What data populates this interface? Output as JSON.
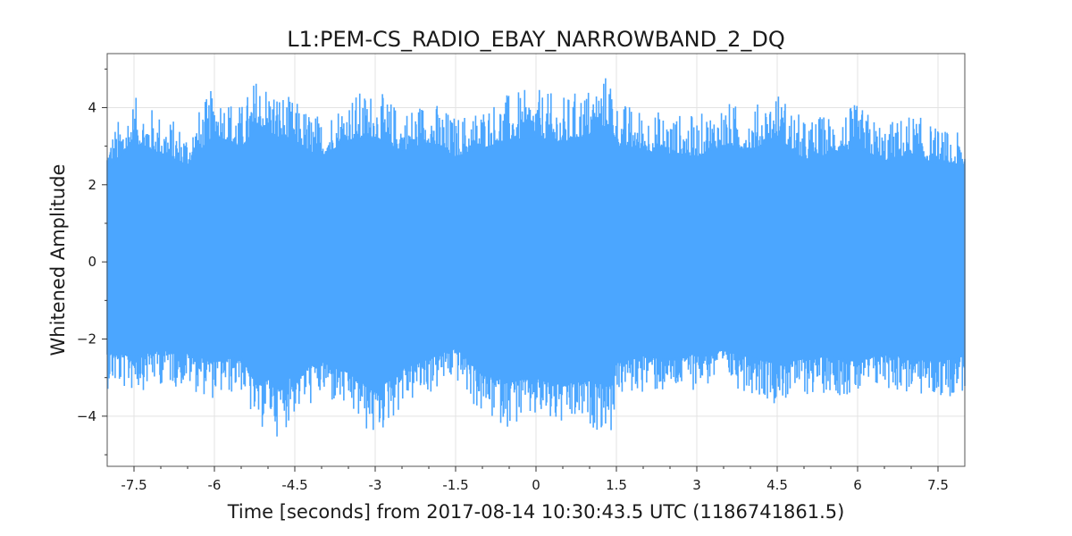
{
  "chart_data": {
    "type": "line",
    "title": "L1:PEM-CS_RADIO_EBAY_NARROWBAND_2_DQ",
    "xlabel": "Time [seconds] from 2017-08-14 10:30:43.5 UTC (1186741861.5)",
    "ylabel": "Whitened Amplitude",
    "xlim": [
      -8,
      8
    ],
    "ylim": [
      -5.3,
      5.4
    ],
    "x_ticks": [
      -7.5,
      -6,
      -4.5,
      -3,
      -1.5,
      0,
      1.5,
      3,
      4.5,
      6,
      7.5
    ],
    "x_tick_labels": [
      "-7.5",
      "-6",
      "-4.5",
      "-3",
      "-1.5",
      "0",
      "1.5",
      "3",
      "4.5",
      "6",
      "7.5"
    ],
    "y_ticks": [
      -4,
      -2,
      0,
      2,
      4
    ],
    "y_tick_labels": [
      "−4",
      "−2",
      "0",
      "2",
      "4"
    ],
    "grid": true,
    "series": [
      {
        "color": "#4ba6ff",
        "x": [
          -8.0,
          -7.5,
          -7.0,
          -6.5,
          -6.0,
          -5.5,
          -5.2,
          -5.0,
          -4.8,
          -4.5,
          -4.0,
          -3.5,
          -3.0,
          -2.5,
          -2.0,
          -1.5,
          -1.0,
          -0.5,
          0.0,
          0.5,
          1.0,
          1.4,
          1.5,
          2.0,
          2.5,
          3.0,
          3.5,
          4.0,
          4.5,
          5.0,
          5.5,
          6.0,
          6.5,
          7.0,
          7.5,
          8.0
        ],
        "upper": [
          3.3,
          4.3,
          3.9,
          3.5,
          4.6,
          4.1,
          4.9,
          4.7,
          4.5,
          4.2,
          3.8,
          4.4,
          4.5,
          4.0,
          4.3,
          3.8,
          4.1,
          4.4,
          4.5,
          4.3,
          4.6,
          5.0,
          4.2,
          4.0,
          3.9,
          3.8,
          4.2,
          4.0,
          4.5,
          3.7,
          3.9,
          4.1,
          3.6,
          3.9,
          3.5,
          3.3
        ],
        "lower": [
          -3.3,
          -3.4,
          -3.2,
          -3.3,
          -3.6,
          -3.4,
          -4.5,
          -4.2,
          -4.6,
          -4.0,
          -3.6,
          -4.0,
          -4.7,
          -3.8,
          -3.5,
          -3.1,
          -4.1,
          -4.3,
          -4.2,
          -4.4,
          -4.3,
          -4.5,
          -3.6,
          -3.4,
          -3.5,
          -3.3,
          -3.2,
          -3.4,
          -3.7,
          -3.5,
          -3.4,
          -3.6,
          -3.3,
          -3.5,
          -3.6,
          -3.4
        ]
      }
    ]
  }
}
